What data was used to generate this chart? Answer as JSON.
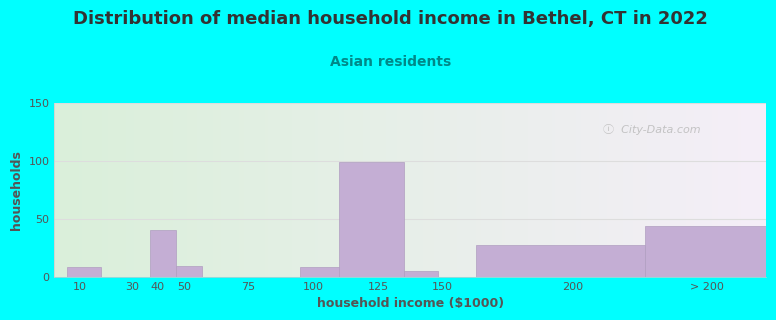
{
  "title": "Distribution of median household income in Bethel, CT in 2022",
  "subtitle": "Asian residents",
  "xlabel": "household income ($1000)",
  "ylabel": "households",
  "background_color": "#00FFFF",
  "bar_color": "#c4aed4",
  "bar_edgecolor": "#b09ec0",
  "categories": [
    "10",
    "30",
    "40",
    "50",
    "75",
    "100",
    "125",
    "150",
    "200",
    "> 200"
  ],
  "values": [
    8,
    0,
    40,
    9,
    0,
    8,
    99,
    5,
    27,
    44
  ],
  "bar_left_edges": [
    5,
    20,
    37,
    47,
    58,
    95,
    110,
    135,
    163,
    228
  ],
  "bar_right_edges": [
    18,
    33,
    47,
    57,
    78,
    112,
    135,
    148,
    228,
    275
  ],
  "tick_positions": [
    10,
    30,
    40,
    50,
    75,
    100,
    125,
    150,
    200,
    252
  ],
  "ylim": [
    0,
    150
  ],
  "yticks": [
    0,
    50,
    100,
    150
  ],
  "xlim": [
    0,
    275
  ],
  "title_fontsize": 13,
  "subtitle_fontsize": 10,
  "xlabel_fontsize": 9,
  "ylabel_fontsize": 9,
  "watermark_text": "ⓘ  City-Data.com",
  "title_color": "#333333",
  "subtitle_color": "#008888",
  "axis_label_color": "#555555",
  "tick_label_color": "#555555",
  "grid_color": "#dddddd",
  "watermark_color": "#bbbbbb"
}
